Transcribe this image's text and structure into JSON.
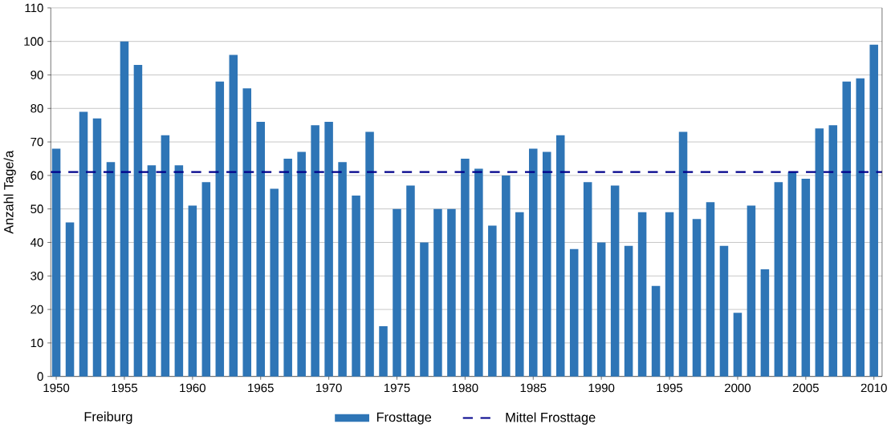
{
  "chart_data": {
    "type": "bar",
    "ylabel": "Anzahl Tage/a",
    "x": [
      1950,
      1951,
      1952,
      1953,
      1954,
      1955,
      1956,
      1957,
      1958,
      1959,
      1960,
      1961,
      1962,
      1963,
      1964,
      1965,
      1966,
      1967,
      1968,
      1969,
      1970,
      1971,
      1972,
      1973,
      1974,
      1975,
      1976,
      1977,
      1978,
      1979,
      1980,
      1981,
      1982,
      1983,
      1984,
      1985,
      1986,
      1987,
      1988,
      1989,
      1990,
      1991,
      1992,
      1993,
      1994,
      1995,
      1996,
      1997,
      1998,
      1999,
      2000,
      2001,
      2002,
      2003,
      2004,
      2005,
      2006,
      2007,
      2008,
      2009,
      2010
    ],
    "series": [
      {
        "name": "Frosttage",
        "color": "#2e75b6",
        "values": [
          68,
          46,
          79,
          77,
          64,
          100,
          93,
          63,
          72,
          63,
          51,
          58,
          88,
          96,
          86,
          76,
          56,
          65,
          67,
          75,
          76,
          64,
          54,
          73,
          15,
          50,
          57,
          40,
          50,
          50,
          65,
          62,
          45,
          60,
          49,
          68,
          67,
          72,
          38,
          58,
          40,
          57,
          39,
          49,
          27,
          49,
          73,
          47,
          52,
          39,
          19,
          51,
          32,
          58,
          61,
          59,
          74,
          75,
          88,
          89,
          99
        ]
      }
    ],
    "xlim": [
      1949.6,
      2010.6
    ],
    "xticks": [
      1950,
      1955,
      1960,
      1965,
      1970,
      1975,
      1980,
      1985,
      1990,
      1995,
      2000,
      2005,
      2010
    ],
    "ylim": [
      0,
      110
    ],
    "yticks": [
      0,
      10,
      20,
      30,
      40,
      50,
      60,
      70,
      80,
      90,
      100,
      110
    ],
    "grid": "y",
    "legend": "bottom",
    "ref_lines": [
      {
        "axis": "y",
        "value": 61,
        "label": "Mittel Frosttage",
        "color": "#00008b",
        "line_style": "dashed"
      }
    ],
    "annotations": [
      "Freiburg"
    ]
  }
}
